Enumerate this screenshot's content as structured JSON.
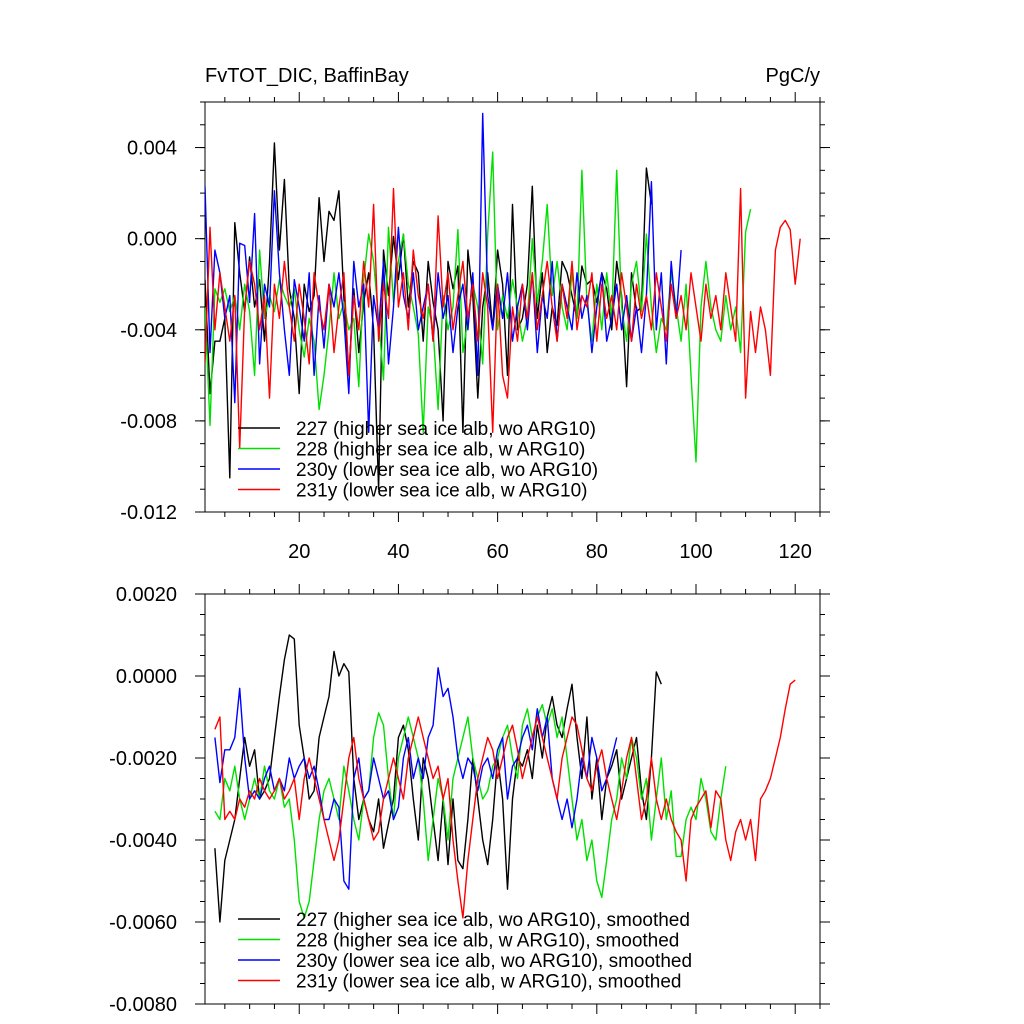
{
  "chart_data": [
    {
      "type": "line",
      "title": "FvTOT_DIC, BaffinBay",
      "units": "PgC/y",
      "xlim": [
        1,
        125
      ],
      "ylim": [
        -0.012,
        0.006
      ],
      "xticks": [
        20,
        40,
        60,
        80,
        100,
        120
      ],
      "xtick_labels": [
        "20",
        "40",
        "60",
        "80",
        "100",
        "120"
      ],
      "yticks": [
        -0.012,
        -0.008,
        -0.004,
        0.0,
        0.004
      ],
      "ytick_labels": [
        "-0.012",
        "-0.008",
        "-0.004",
        "0.000",
        "0.004"
      ],
      "legend_position": "bottom-left",
      "series": [
        {
          "name": "227 (higher sea ice alb, wo ARG10)",
          "color": "#000000",
          "x_start": 1,
          "values": [
            -0.0018,
            -0.0068,
            -0.0045,
            -0.0045,
            -0.0035,
            -0.0105,
            0.0007,
            -0.0015,
            -0.0032,
            -0.0008,
            -0.003,
            -0.0018,
            -0.0045,
            -0.001,
            0.0042,
            -0.0005,
            0.0026,
            -0.0022,
            -0.0035,
            -0.0068,
            -0.002,
            -0.0032,
            -0.0025,
            0.0018,
            -0.001,
            0.0012,
            0.0008,
            0.0021,
            -0.0026,
            -0.006,
            -0.0022,
            -0.005,
            -0.0028,
            -0.0015,
            -0.004,
            -0.011,
            -0.0005,
            -0.0025,
            0.0001,
            -0.0018,
            0.0002,
            -0.003,
            -0.001,
            -0.0015,
            -0.0045,
            -0.001,
            -0.0028,
            -0.004,
            -0.008,
            -0.001,
            -0.0022,
            -0.0012,
            -0.0085,
            -0.0005,
            -0.0025,
            -0.007,
            -0.003,
            -0.0015,
            -0.004,
            -0.0005,
            -0.002,
            -0.006,
            0.0015,
            -0.004,
            -0.0035,
            -0.002,
            0.0023,
            -0.0035,
            -0.0015,
            -0.005,
            -0.003,
            -0.0038,
            -0.001,
            -0.0015,
            -0.0025,
            -0.0035,
            -0.0012,
            -0.002,
            -0.0018,
            -0.0028,
            -0.0015,
            -0.0022,
            -0.004,
            -0.001,
            -0.0025,
            -0.0065,
            -0.0015,
            -0.0032,
            -0.003,
            0.0031,
            0.0015
          ]
        },
        {
          "name": "228 (higher sea ice alb, w ARG10)",
          "color": "#00e000",
          "x_start": 1,
          "values": [
            -0.003,
            -0.0082,
            -0.0022,
            -0.0028,
            -0.0022,
            -0.0032,
            -0.0025,
            -0.004,
            -0.002,
            -0.0032,
            -0.006,
            -0.0005,
            -0.0035,
            -0.0025,
            -0.0032,
            -0.0018,
            -0.0025,
            -0.003,
            -0.0022,
            -0.004,
            -0.0052,
            -0.0035,
            -0.0045,
            -0.0075,
            -0.006,
            -0.004,
            -0.0015,
            -0.0035,
            -0.0028,
            -0.004,
            -0.0035,
            -0.0065,
            -0.0018,
            0.0002,
            -0.001,
            -0.0035,
            -0.0062,
            0.0005,
            -0.0028,
            -0.001,
            0.0002,
            -0.002,
            -0.003,
            -0.0042,
            -0.0085,
            -0.003,
            -0.004,
            -0.0075,
            -0.0025,
            -0.004,
            -0.003,
            0.0004,
            -0.005,
            -0.0035,
            -0.002,
            -0.003,
            -0.0055,
            0.0002,
            0.0038,
            -0.004,
            -0.0025,
            -0.0035,
            -0.0018,
            -0.003,
            -0.0045,
            -0.0035,
            0.0,
            -0.0028,
            -0.001,
            0.0015,
            -0.0025,
            -0.001,
            -0.003,
            -0.004,
            -0.0015,
            -0.0035,
            0.003,
            -0.0028,
            -0.0045,
            -0.002,
            -0.004,
            -0.0015,
            -0.0035,
            0.003,
            -0.003,
            -0.0045,
            -0.002,
            -0.001,
            -0.0032,
            0.0002,
            -0.003,
            -0.005,
            -0.0035,
            -0.004,
            -0.0015,
            -0.003,
            -0.0045,
            -0.002,
            -0.006,
            -0.0098,
            -0.003,
            -0.001,
            -0.003,
            -0.004,
            -0.0045,
            -0.0025,
            -0.004,
            -0.003,
            -0.005,
            0.0003,
            0.0013
          ]
        },
        {
          "name": "230y (lower sea ice alb, wo ARG10)",
          "color": "#0000ff",
          "x_start": 1,
          "values": [
            0.0023,
            -0.005,
            -0.0005,
            -0.0015,
            -0.0035,
            -0.0025,
            -0.0072,
            -0.0002,
            -0.0003,
            -0.0028,
            0.0011,
            -0.0055,
            -0.002,
            -0.003,
            0.0021,
            -0.0015,
            -0.004,
            -0.006,
            -0.0018,
            -0.003,
            -0.0045,
            -0.0015,
            -0.006,
            -0.0025,
            -0.0048,
            -0.002,
            -0.003,
            -0.0015,
            -0.0035,
            -0.0068,
            -0.001,
            -0.003,
            -0.002,
            -0.0085,
            -0.0025,
            -0.004,
            -0.001,
            -0.0055,
            -0.003,
            0.0005,
            -0.0025,
            -0.0035,
            -0.0015,
            -0.004,
            -0.003,
            -0.002,
            -0.0045,
            -0.0015,
            -0.0035,
            -0.0025,
            -0.005,
            -0.003,
            -0.002,
            -0.004,
            -0.0015,
            -0.006,
            0.0055,
            -0.0025,
            -0.004,
            -0.002,
            -0.0035,
            -0.0015,
            -0.0045,
            -0.003,
            -0.002,
            -0.004,
            -0.0015,
            -0.005,
            -0.0025,
            -0.0035,
            -0.001,
            -0.0045,
            -0.002,
            -0.003,
            -0.004,
            -0.0015,
            -0.0035,
            -0.0025,
            -0.005,
            -0.003,
            -0.0015,
            -0.0045,
            -0.0035,
            -0.002,
            -0.004,
            -0.0025,
            -0.0045,
            -0.003,
            -0.005,
            -0.0025,
            0.0025,
            -0.004,
            -0.0015,
            -0.0055,
            -0.001,
            -0.0035,
            -0.0005
          ]
        },
        {
          "name": "231y (lower sea ice alb, w ARG10)",
          "color": "#ff0000",
          "x_start": 1,
          "values": [
            -0.0055,
            0.0005,
            -0.004,
            -0.0015,
            -0.003,
            -0.0045,
            -0.0025,
            -0.0092,
            -0.003,
            -0.001,
            -0.002,
            -0.004,
            -0.0025,
            -0.007,
            -0.002,
            -0.0035,
            -0.001,
            -0.003,
            -0.0045,
            -0.002,
            -0.0035,
            -0.0055,
            -0.0015,
            -0.003,
            -0.004,
            -0.002,
            -0.005,
            -0.003,
            -0.0015,
            -0.006,
            -0.0025,
            -0.004,
            -0.001,
            -0.003,
            0.0015,
            -0.0045,
            -0.002,
            -0.0035,
            0.0022,
            -0.003,
            -0.0015,
            -0.004,
            -0.0005,
            -0.0025,
            -0.0035,
            -0.002,
            -0.0045,
            0.001,
            -0.003,
            -0.0015,
            -0.004,
            -0.0025,
            -0.001,
            -0.0035,
            -0.002,
            -0.0045,
            -0.0015,
            -0.003,
            -0.0085,
            -0.002,
            -0.006,
            -0.007,
            -0.003,
            -0.0045,
            -0.002,
            -0.0035,
            -0.0015,
            -0.004,
            -0.0025,
            -0.001,
            -0.003,
            -0.0045,
            -0.002,
            -0.0035,
            -0.001,
            -0.004,
            -0.0025,
            -0.003,
            -0.0015,
            -0.0045,
            -0.002,
            -0.0035,
            -0.0025,
            -0.004,
            -0.0015,
            -0.003,
            -0.0045,
            -0.002,
            -0.0035,
            -0.0025,
            -0.004,
            -0.0015,
            -0.003,
            -0.0045,
            -0.002,
            -0.0035,
            -0.0025,
            -0.004,
            -0.0015,
            -0.003,
            -0.0045,
            -0.002,
            -0.0035,
            -0.0025,
            -0.004,
            -0.0015,
            -0.003,
            -0.0045,
            0.0022,
            -0.007,
            -0.0032,
            -0.005,
            -0.003,
            -0.004,
            -0.006,
            -0.0005,
            0.0005,
            0.0008,
            0.0004,
            -0.002,
            0.0
          ]
        }
      ]
    },
    {
      "type": "line",
      "title": "",
      "xlim": [
        1,
        125
      ],
      "ylim": [
        -0.008,
        0.002
      ],
      "yticks": [
        -0.008,
        -0.006,
        -0.004,
        -0.002,
        0.0,
        0.002
      ],
      "ytick_labels": [
        "-0.0080",
        "-0.0060",
        "-0.0040",
        "-0.0020",
        "0.0000",
        "0.0020"
      ],
      "legend_position": "bottom-left",
      "series": [
        {
          "name": "227 (higher sea ice alb, wo ARG10), smoothed",
          "color": "#000000",
          "x_start": 3,
          "values": [
            -0.0042,
            -0.006,
            -0.0045,
            -0.004,
            -0.0035,
            -0.0025,
            -0.0015,
            -0.0022,
            -0.0018,
            -0.003,
            -0.0028,
            -0.0025,
            -0.0015,
            -0.0005,
            0.0004,
            0.001,
            0.0009,
            -0.0012,
            -0.002,
            -0.003,
            -0.0028,
            -0.0015,
            -0.001,
            -0.0005,
            0.0006,
            0.0,
            0.0003,
            0.0001,
            -0.0025,
            -0.0035,
            -0.003,
            -0.0035,
            -0.0038,
            -0.003,
            -0.0042,
            -0.0036,
            -0.003,
            -0.0015,
            -0.0012,
            -0.0018,
            -0.003,
            -0.004,
            -0.002,
            -0.0025,
            -0.0035,
            -0.0045,
            -0.003,
            -0.0046,
            -0.003,
            -0.0045,
            -0.0047,
            -0.0035,
            -0.002,
            -0.003,
            -0.004,
            -0.0046,
            -0.0035,
            -0.002,
            -0.003,
            -0.0052,
            -0.003,
            -0.002,
            -0.0022,
            -0.0018,
            -0.0025,
            -0.0012,
            -0.002,
            -0.001,
            -0.0005,
            -0.0012,
            -0.0015,
            -0.0008,
            -0.0002,
            -0.0015,
            -0.0025,
            -0.001,
            -0.003,
            -0.002,
            -0.0035,
            -0.0025,
            -0.0022,
            -0.0018,
            -0.003,
            -0.0025,
            -0.002,
            -0.0015,
            -0.0028,
            -0.0035,
            -0.002,
            0.0001,
            -0.0002
          ]
        },
        {
          "name": "228 (higher sea ice alb, w ARG10), smoothed",
          "color": "#00e000",
          "x_start": 3,
          "values": [
            -0.0033,
            -0.0035,
            -0.0025,
            -0.0028,
            -0.0022,
            -0.003,
            -0.0035,
            -0.003,
            -0.0025,
            -0.003,
            -0.0022,
            -0.0028,
            -0.003,
            -0.0025,
            -0.0032,
            -0.003,
            -0.004,
            -0.0055,
            -0.0059,
            -0.0055,
            -0.0045,
            -0.0035,
            -0.0028,
            -0.0025,
            -0.003,
            -0.0035,
            -0.0022,
            -0.0028,
            -0.0035,
            -0.004,
            -0.003,
            -0.0028,
            -0.0015,
            -0.0009,
            -0.0012,
            -0.0025,
            -0.0035,
            -0.002,
            -0.0015,
            -0.001,
            -0.0015,
            -0.002,
            -0.003,
            -0.0045,
            -0.0035,
            -0.0025,
            -0.003,
            -0.004,
            -0.0025,
            -0.002,
            -0.0015,
            -0.001,
            -0.002,
            -0.0025,
            -0.003,
            -0.0028,
            -0.0022,
            -0.002,
            -0.0015,
            -0.0012,
            -0.002,
            -0.0025,
            -0.0012,
            -0.0008,
            -0.0015,
            -0.001,
            -0.0007,
            -0.0012,
            -0.0008,
            -0.0015,
            -0.001,
            -0.002,
            -0.003,
            -0.004,
            -0.0035,
            -0.0045,
            -0.004,
            -0.005,
            -0.0054,
            -0.0045,
            -0.0035,
            -0.003,
            -0.002,
            -0.0025,
            -0.0015,
            -0.002,
            -0.003,
            -0.0025,
            -0.004,
            -0.003,
            -0.002,
            -0.0035,
            -0.0028,
            -0.0044,
            -0.0044,
            -0.0035,
            -0.0032,
            -0.0035,
            -0.0025,
            -0.003,
            -0.0038,
            -0.004,
            -0.003,
            -0.0022
          ]
        },
        {
          "name": "230y (lower sea ice alb, wo ARG10), smoothed",
          "color": "#0000ff",
          "x_start": 3,
          "values": [
            -0.0015,
            -0.0026,
            -0.0018,
            -0.0018,
            -0.0015,
            -0.0003,
            -0.002,
            -0.003,
            -0.0028,
            -0.003,
            -0.0025,
            -0.0022,
            -0.0028,
            -0.0025,
            -0.0028,
            -0.002,
            -0.0025,
            -0.0022,
            -0.002,
            -0.0025,
            -0.0022,
            -0.0028,
            -0.0035,
            -0.0035,
            -0.003,
            -0.0032,
            -0.005,
            -0.0052,
            -0.0025,
            -0.002,
            -0.003,
            -0.0028,
            -0.002,
            -0.0025,
            -0.003,
            -0.0028,
            -0.0035,
            -0.0032,
            -0.002,
            -0.0015,
            -0.0025,
            -0.002,
            -0.0025,
            -0.0015,
            -0.0012,
            0.0002,
            -0.0005,
            -0.0003,
            -0.001,
            -0.002,
            -0.0025,
            -0.002,
            -0.0022,
            -0.0028,
            -0.0022,
            -0.002,
            -0.0025,
            -0.0018,
            -0.0015,
            -0.003,
            -0.0022,
            -0.002,
            -0.0015,
            -0.0012,
            -0.0018,
            -0.0008,
            -0.0015,
            -0.001,
            -0.0025,
            -0.003,
            -0.0035,
            -0.003,
            -0.0037,
            -0.003,
            -0.002,
            -0.0025,
            -0.0015,
            -0.002,
            -0.0028,
            -0.0025,
            -0.002,
            -0.0015
          ]
        },
        {
          "name": "231y (lower sea ice alb, w ARG10), smoothed",
          "color": "#ff0000",
          "x_start": 3,
          "values": [
            -0.0013,
            -0.001,
            -0.0035,
            -0.0033,
            -0.0035,
            -0.003,
            -0.0032,
            -0.0028,
            -0.003,
            -0.0025,
            -0.0028,
            -0.003,
            -0.0028,
            -0.0025,
            -0.003,
            -0.0028,
            -0.0025,
            -0.0035,
            -0.0025,
            -0.002,
            -0.0025,
            -0.003,
            -0.0035,
            -0.004,
            -0.0045,
            -0.004,
            -0.003,
            -0.002,
            -0.0015,
            -0.0025,
            -0.003,
            -0.0035,
            -0.004,
            -0.0038,
            -0.003,
            -0.0025,
            -0.002,
            -0.0025,
            -0.003,
            -0.002,
            -0.0015,
            -0.001,
            -0.0015,
            -0.002,
            -0.0025,
            -0.0022,
            -0.003,
            -0.0025,
            -0.004,
            -0.005,
            -0.0059,
            -0.0045,
            -0.0035,
            -0.0025,
            -0.002,
            -0.0015,
            -0.0018,
            -0.0025,
            -0.002,
            -0.0015,
            -0.0012,
            -0.0018,
            -0.0025,
            -0.002,
            -0.0015,
            -0.001,
            -0.0015,
            -0.002,
            -0.0025,
            -0.003,
            -0.002,
            -0.0015,
            -0.001,
            -0.0012,
            -0.0018,
            -0.0025,
            -0.0028,
            -0.0022,
            -0.0018,
            -0.0025,
            -0.003,
            -0.0035,
            -0.0028,
            -0.002,
            -0.0015,
            -0.0025,
            -0.0035,
            -0.003,
            -0.002,
            -0.003,
            -0.0035,
            -0.003,
            -0.0035,
            -0.0038,
            -0.004,
            -0.005,
            -0.0035,
            -0.0032,
            -0.003,
            -0.0028,
            -0.0037,
            -0.0028,
            -0.003,
            -0.004,
            -0.0045,
            -0.0038,
            -0.0035,
            -0.004,
            -0.0035,
            -0.0045,
            -0.003,
            -0.0028,
            -0.0025,
            -0.002,
            -0.0015,
            -0.0008,
            -0.0002,
            -0.0001
          ]
        }
      ]
    }
  ]
}
